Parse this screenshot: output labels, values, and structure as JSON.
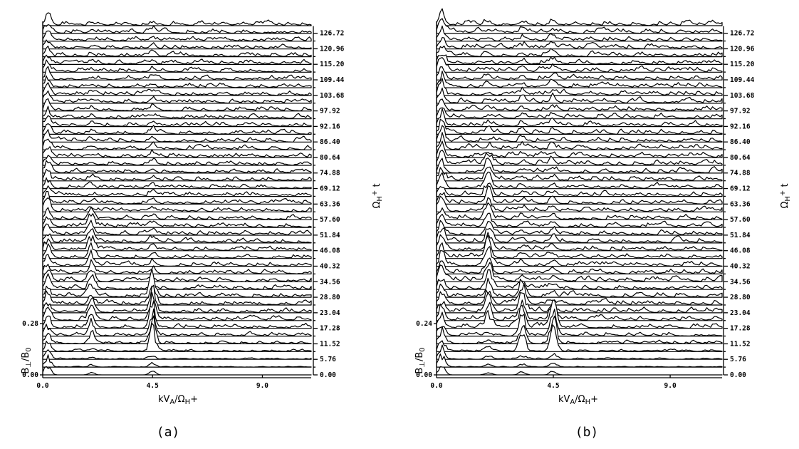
{
  "chart_data": [
    {
      "type": "stacked-line",
      "panel_label": "(a)",
      "xlabel": "kV",
      "xlabel_sub": "A",
      "xlabel_den": "/Ω",
      "xlabel_den_sub": "H",
      "xlabel_den_sup": "+",
      "ylabel_left": "B",
      "ylabel_left_sub": "⊥",
      "ylabel_left_den": "/B",
      "ylabel_left_den_sub": "0",
      "ylabel_right": "Ω",
      "ylabel_right_sub": "H",
      "ylabel_right_sup": "+",
      "ylabel_right_var": "t",
      "x_ticks": [
        "0.0",
        "4.5",
        "9.0"
      ],
      "x_tick_values": [
        0.0,
        4.5,
        9.0
      ],
      "xlim": [
        0.0,
        11.0
      ],
      "amp_ticks": [
        "0.00",
        "0.28"
      ],
      "amp_tick_values": [
        0.0,
        0.28
      ],
      "time_ticks": [
        "0.00",
        "5.76",
        "11.52",
        "17.28",
        "23.04",
        "28.80",
        "34.56",
        "40.32",
        "46.08",
        "51.84",
        "57.60",
        "63.36",
        "69.12",
        "74.88",
        "80.64",
        "86.40",
        "92.16",
        "97.92",
        "103.68",
        "109.44",
        "115.20",
        "120.96",
        "126.72"
      ],
      "time_tick_values": [
        0.0,
        5.76,
        11.52,
        17.28,
        23.04,
        28.8,
        34.56,
        40.32,
        46.08,
        51.84,
        57.6,
        63.36,
        69.12,
        74.88,
        80.64,
        86.4,
        92.16,
        97.92,
        103.68,
        109.44,
        115.2,
        120.96,
        126.72
      ],
      "num_traces": 46,
      "dominant_peaks": [
        {
          "k": 4.5,
          "t_range": [
            8.0,
            30.0
          ],
          "amp": 0.28
        },
        {
          "k": 2.0,
          "t_range": [
            10.0,
            60.0
          ],
          "amp": 0.15
        },
        {
          "k": 0.2,
          "t_range": [
            0.0,
            132.0
          ],
          "amp": 0.12
        }
      ]
    },
    {
      "type": "stacked-line",
      "panel_label": "(b)",
      "xlabel": "kV",
      "xlabel_sub": "A",
      "xlabel_den": "/Ω",
      "xlabel_den_sub": "H",
      "xlabel_den_sup": "+",
      "ylabel_left": "B",
      "ylabel_left_sub": "⊥",
      "ylabel_left_den": "/B",
      "ylabel_left_den_sub": "0",
      "ylabel_right": "Ω",
      "ylabel_right_sub": "H",
      "ylabel_right_sup": "+",
      "ylabel_right_var": "t",
      "x_ticks": [
        "0.0",
        "4.5",
        "9.0"
      ],
      "x_tick_values": [
        0.0,
        4.5,
        9.0
      ],
      "xlim": [
        0.0,
        11.0
      ],
      "amp_ticks": [
        "0.00",
        "0.24"
      ],
      "amp_tick_values": [
        0.0,
        0.24
      ],
      "time_ticks": [
        "0.00",
        "5.76",
        "11.52",
        "17.28",
        "23.04",
        "28.80",
        "34.56",
        "40.32",
        "46.08",
        "51.84",
        "57.60",
        "63.36",
        "69.12",
        "74.88",
        "80.64",
        "86.40",
        "92.16",
        "97.92",
        "103.68",
        "109.44",
        "115.20",
        "120.96",
        "126.72"
      ],
      "time_tick_values": [
        0.0,
        5.76,
        11.52,
        17.28,
        23.04,
        28.8,
        34.56,
        40.32,
        46.08,
        51.84,
        57.6,
        63.36,
        69.12,
        74.88,
        80.64,
        86.4,
        92.16,
        97.92,
        103.68,
        109.44,
        115.2,
        120.96,
        126.72
      ],
      "num_traces": 46,
      "dominant_peaks": [
        {
          "k": 4.5,
          "t_range": [
            8.0,
            22.0
          ],
          "amp": 0.24
        },
        {
          "k": 3.3,
          "t_range": [
            8.0,
            30.0
          ],
          "amp": 0.2
        },
        {
          "k": 2.0,
          "t_range": [
            15.0,
            80.0
          ],
          "amp": 0.15
        },
        {
          "k": 0.2,
          "t_range": [
            0.0,
            132.0
          ],
          "amp": 0.12
        }
      ]
    }
  ]
}
